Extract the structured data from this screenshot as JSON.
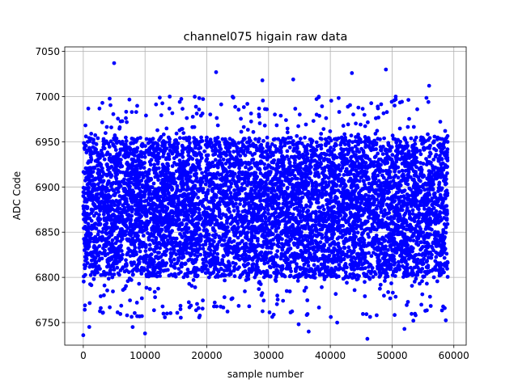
{
  "chart_data": {
    "type": "scatter",
    "title": "channel075 higain raw data",
    "xlabel": "sample number",
    "ylabel": "ADC Code",
    "xlim": [
      -3000,
      62000
    ],
    "ylim": [
      6725,
      7055
    ],
    "xticks": [
      0,
      10000,
      20000,
      30000,
      40000,
      50000,
      60000
    ],
    "yticks": [
      6750,
      6800,
      6850,
      6900,
      6950,
      7000,
      7050
    ],
    "grid": true,
    "legend": "none",
    "marker_color": "#0000ff",
    "series": [
      {
        "n_samples": 59000,
        "x_range": [
          0,
          59000
        ],
        "dense_band": [
          6800,
          6955
        ],
        "center": 6875,
        "outliers": [
          {
            "x": 0,
            "y": 6736
          },
          {
            "x": 5000,
            "y": 7037
          },
          {
            "x": 10000,
            "y": 6738
          },
          {
            "x": 21500,
            "y": 7027
          },
          {
            "x": 29000,
            "y": 7018
          },
          {
            "x": 34000,
            "y": 7019
          },
          {
            "x": 43500,
            "y": 7026
          },
          {
            "x": 49000,
            "y": 7030
          },
          {
            "x": 56000,
            "y": 7012
          },
          {
            "x": 46000,
            "y": 6732
          },
          {
            "x": 36500,
            "y": 6740
          },
          {
            "x": 14000,
            "y": 7000
          },
          {
            "x": 8000,
            "y": 6745
          },
          {
            "x": 52000,
            "y": 6743
          }
        ]
      }
    ]
  }
}
